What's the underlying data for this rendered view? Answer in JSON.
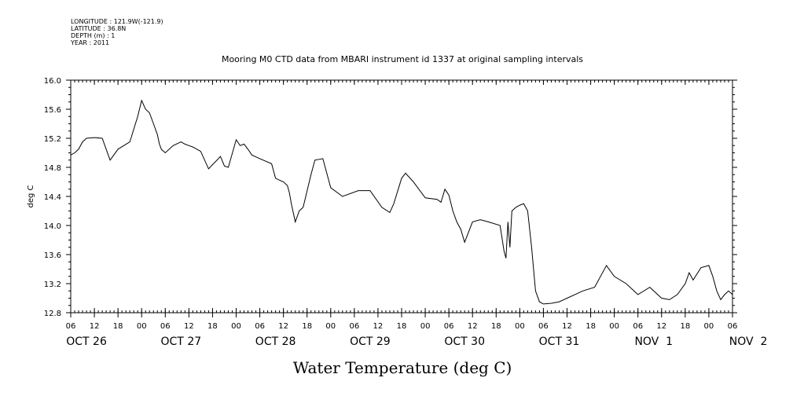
{
  "header": {
    "longitude": "LONGITUDE : 121.9W(-121.9)",
    "latitude": "LATITUDE : 36.8N",
    "depth": "DEPTH (m) : 1",
    "year": "YEAR : 2011"
  },
  "chart_data": {
    "type": "line",
    "title": "Mooring M0 CTD data from MBARI instrument id 1337 at original sampling intervals",
    "ylabel": "deg C",
    "xlabel": "Water Temperature (deg C)",
    "ylim": [
      12.8,
      16.0
    ],
    "y_ticks": [
      "16.0",
      "15.6",
      "15.2",
      "14.8",
      "14.4",
      "14.0",
      "13.6",
      "13.2",
      "12.8"
    ],
    "xlim": [
      "2011-10-26 06:00",
      "2011-11-02 06:00"
    ],
    "x_hour_ticks": [
      "06",
      "12",
      "18",
      "00",
      "06",
      "12",
      "18",
      "00",
      "06",
      "12",
      "18",
      "00",
      "06",
      "12",
      "18",
      "00",
      "06",
      "12",
      "18",
      "00",
      "06",
      "12",
      "18",
      "00",
      "06",
      "12",
      "18",
      "00",
      "06"
    ],
    "day_labels": [
      "OCT 26",
      "OCT 27",
      "OCT 28",
      "OCT 29",
      "OCT 30",
      "OCT 31",
      "NOV  1",
      "NOV  2"
    ],
    "grid": false,
    "series": [
      {
        "x": [
          "2011-10-26 06:00",
          "2011-10-26 07:00",
          "2011-10-26 08:00",
          "2011-10-26 09:00",
          "2011-10-26 10:00",
          "2011-10-26 12:00",
          "2011-10-26 14:00",
          "2011-10-26 15:00",
          "2011-10-26 16:00",
          "2011-10-26 18:00",
          "2011-10-26 21:00",
          "2011-10-26 23:00",
          "2011-10-27 00:00",
          "2011-10-27 01:00",
          "2011-10-27 02:00",
          "2011-10-27 03:00",
          "2011-10-27 04:00",
          "2011-10-27 04:30",
          "2011-10-27 05:00",
          "2011-10-27 06:00",
          "2011-10-27 08:00",
          "2011-10-27 10:00",
          "2011-10-27 11:00",
          "2011-10-27 12:00",
          "2011-10-27 13:00",
          "2011-10-27 15:00",
          "2011-10-27 17:00",
          "2011-10-27 20:00",
          "2011-10-27 21:00",
          "2011-10-27 22:00",
          "2011-10-28 00:00",
          "2011-10-28 01:00",
          "2011-10-28 02:00",
          "2011-10-28 03:00",
          "2011-10-28 04:00",
          "2011-10-28 06:00",
          "2011-10-28 09:00",
          "2011-10-28 10:00",
          "2011-10-28 12:00",
          "2011-10-28 13:00",
          "2011-10-28 13:30",
          "2011-10-28 14:00",
          "2011-10-28 15:00",
          "2011-10-28 16:00",
          "2011-10-28 17:00",
          "2011-10-28 19:00",
          "2011-10-28 20:00",
          "2011-10-28 22:00",
          "2011-10-29 00:00",
          "2011-10-29 03:00",
          "2011-10-29 07:00",
          "2011-10-29 10:00",
          "2011-10-29 13:00",
          "2011-10-29 15:00",
          "2011-10-29 16:00",
          "2011-10-29 18:00",
          "2011-10-29 19:00",
          "2011-10-29 21:00",
          "2011-10-30 00:00",
          "2011-10-30 03:00",
          "2011-10-30 04:00",
          "2011-10-30 05:00",
          "2011-10-30 06:00",
          "2011-10-30 07:00",
          "2011-10-30 08:00",
          "2011-10-30 09:00",
          "2011-10-30 10:00",
          "2011-10-30 12:00",
          "2011-10-30 14:00",
          "2011-10-30 16:00",
          "2011-10-30 19:00",
          "2011-10-30 20:00",
          "2011-10-30 20:30",
          "2011-10-30 21:00",
          "2011-10-30 21:30",
          "2011-10-30 22:00",
          "2011-10-30 23:00",
          "2011-10-31 00:00",
          "2011-10-31 01:00",
          "2011-10-31 02:00",
          "2011-10-31 03:00",
          "2011-10-31 04:00",
          "2011-10-31 05:00",
          "2011-10-31 06:00",
          "2011-10-31 08:00",
          "2011-10-31 10:00",
          "2011-10-31 12:00",
          "2011-10-31 14:00",
          "2011-10-31 16:00",
          "2011-10-31 19:00",
          "2011-10-31 22:00",
          "2011-11-01 00:00",
          "2011-11-01 03:00",
          "2011-11-01 06:00",
          "2011-11-01 09:00",
          "2011-11-01 12:00",
          "2011-11-01 14:00",
          "2011-11-01 16:00",
          "2011-11-01 18:00",
          "2011-11-01 19:00",
          "2011-11-01 20:00",
          "2011-11-01 22:00",
          "2011-11-02 00:00",
          "2011-11-02 01:00",
          "2011-11-02 02:00",
          "2011-11-02 03:00",
          "2011-11-02 04:00",
          "2011-11-02 05:00",
          "2011-11-02 06:00"
        ],
        "values": [
          14.97,
          15.0,
          15.05,
          15.15,
          15.2,
          15.21,
          15.2,
          15.05,
          14.9,
          15.05,
          15.15,
          15.5,
          15.72,
          15.6,
          15.55,
          15.4,
          15.25,
          15.12,
          15.05,
          15.0,
          15.1,
          15.15,
          15.12,
          15.1,
          15.08,
          15.02,
          14.78,
          14.95,
          14.82,
          14.8,
          15.18,
          15.1,
          15.12,
          15.05,
          14.97,
          14.92,
          14.85,
          14.65,
          14.6,
          14.55,
          14.45,
          14.3,
          14.05,
          14.2,
          14.25,
          14.7,
          14.9,
          14.92,
          14.52,
          14.4,
          14.48,
          14.48,
          14.25,
          14.18,
          14.3,
          14.65,
          14.72,
          14.6,
          14.38,
          14.36,
          14.32,
          14.5,
          14.42,
          14.2,
          14.05,
          13.95,
          13.77,
          14.05,
          14.08,
          14.05,
          14.0,
          13.65,
          13.55,
          14.05,
          13.7,
          14.2,
          14.25,
          14.28,
          14.3,
          14.2,
          13.7,
          13.1,
          12.95,
          12.92,
          12.93,
          12.95,
          13.0,
          13.05,
          13.1,
          13.15,
          13.45,
          13.3,
          13.2,
          13.05,
          13.15,
          13.0,
          12.98,
          13.05,
          13.2,
          13.35,
          13.25,
          13.42,
          13.45,
          13.3,
          13.1,
          12.98,
          13.05,
          13.1,
          13.05
        ]
      }
    ]
  }
}
